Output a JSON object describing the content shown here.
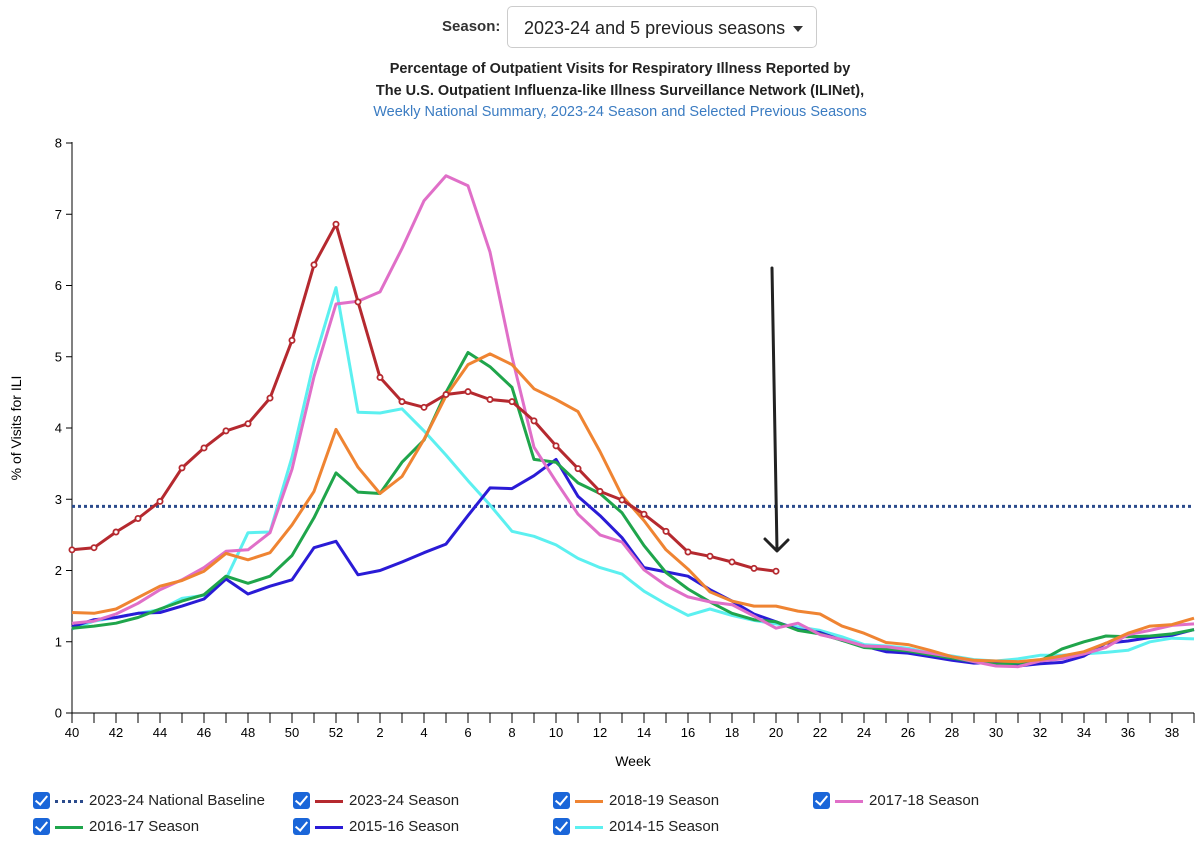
{
  "season_selector": {
    "label": "Season:",
    "value": "2023-24 and 5 previous seasons"
  },
  "titles": {
    "line1": "Percentage of Outpatient Visits for Respiratory Illness Reported by",
    "line2": "The U.S. Outpatient Influenza-like Illness Surveillance Network (ILINet),",
    "line3": "Weekly National Summary, 2023-24 Season and Selected Previous Seasons"
  },
  "legend": [
    {
      "label": "2023-24 National Baseline",
      "color": "#2b4b8c",
      "style": "dotted"
    },
    {
      "label": "2023-24 Season",
      "color": "#b5292f",
      "style": "solid"
    },
    {
      "label": "2018-19 Season",
      "color": "#ef8432",
      "style": "solid"
    },
    {
      "label": "2017-18 Season",
      "color": "#e06fc8",
      "style": "solid"
    },
    {
      "label": "2016-17 Season",
      "color": "#1fa54b",
      "style": "solid"
    },
    {
      "label": "2015-16 Season",
      "color": "#2a1bd6",
      "style": "solid"
    },
    {
      "label": "2014-15 Season",
      "color": "#5cf0f0",
      "style": "solid"
    }
  ],
  "chart_data": {
    "type": "line",
    "ylabel": "% of Visits for ILI",
    "xlabel": "Week",
    "ylim": [
      0,
      8
    ],
    "yticks": [
      0,
      1,
      2,
      3,
      4,
      5,
      6,
      7,
      8
    ],
    "xtick_labels": [
      "40",
      "42",
      "44",
      "46",
      "48",
      "50",
      "52",
      "2",
      "4",
      "6",
      "8",
      "10",
      "12",
      "14",
      "16",
      "18",
      "20",
      "22",
      "24",
      "26",
      "28",
      "30",
      "32",
      "34",
      "36",
      "38"
    ],
    "baseline": {
      "name": "2023-24 National Baseline",
      "value": 2.9
    },
    "annotation": {
      "type": "arrow",
      "description": "downward arrow pointing to week 20 of 2023-24 season"
    },
    "series": [
      {
        "name": "2023-24 Season",
        "color": "#b5292f",
        "markers": true,
        "values": [
          2.29,
          2.32,
          2.54,
          2.73,
          2.97,
          3.44,
          3.72,
          3.96,
          4.06,
          4.42,
          5.23,
          6.29,
          6.86,
          5.77,
          4.71,
          4.37,
          4.29,
          4.47,
          4.51,
          4.4,
          4.37,
          4.1,
          3.75,
          3.43,
          3.11,
          2.99,
          2.79,
          2.55,
          2.26,
          2.2,
          2.12,
          2.03,
          1.99
        ]
      },
      {
        "name": "2018-19 Season",
        "color": "#ef8432",
        "markers": false,
        "values": [
          1.41,
          1.4,
          1.46,
          1.62,
          1.78,
          1.86,
          1.99,
          2.24,
          2.15,
          2.25,
          2.64,
          3.11,
          3.98,
          3.45,
          3.08,
          3.32,
          3.84,
          4.45,
          4.89,
          5.04,
          4.89,
          4.55,
          4.4,
          4.23,
          3.67,
          3.05,
          2.7,
          2.29,
          2.02,
          1.7,
          1.57,
          1.5,
          1.5,
          1.43,
          1.39,
          1.22,
          1.12,
          0.99,
          0.96,
          0.88,
          0.79,
          0.74,
          0.73,
          0.72,
          0.75,
          0.8,
          0.86,
          0.98,
          1.12,
          1.22,
          1.24,
          1.33
        ]
      },
      {
        "name": "2017-18 Season",
        "color": "#e06fc8",
        "markers": false,
        "values": [
          1.26,
          1.29,
          1.39,
          1.54,
          1.73,
          1.87,
          2.04,
          2.27,
          2.29,
          2.53,
          3.42,
          4.72,
          5.74,
          5.78,
          5.91,
          6.52,
          7.19,
          7.54,
          7.4,
          6.47,
          5.0,
          3.73,
          3.25,
          2.79,
          2.5,
          2.4,
          2.01,
          1.79,
          1.63,
          1.56,
          1.52,
          1.36,
          1.19,
          1.26,
          1.1,
          1.03,
          0.94,
          0.93,
          0.89,
          0.84,
          0.79,
          0.72,
          0.66,
          0.65,
          0.73,
          0.76,
          0.83,
          0.92,
          1.1,
          1.16,
          1.23,
          1.25
        ]
      },
      {
        "name": "2016-17 Season",
        "color": "#1fa54b",
        "markers": false,
        "values": [
          1.19,
          1.22,
          1.26,
          1.34,
          1.46,
          1.57,
          1.66,
          1.92,
          1.82,
          1.92,
          2.21,
          2.74,
          3.37,
          3.1,
          3.08,
          3.52,
          3.83,
          4.5,
          5.06,
          4.86,
          4.57,
          3.56,
          3.52,
          3.23,
          3.08,
          2.81,
          2.35,
          1.97,
          1.74,
          1.56,
          1.4,
          1.31,
          1.28,
          1.16,
          1.11,
          1.02,
          0.92,
          0.9,
          0.87,
          0.82,
          0.77,
          0.72,
          0.68,
          0.7,
          0.73,
          0.9,
          1.0,
          1.08,
          1.07,
          1.08,
          1.11,
          1.17
        ]
      },
      {
        "name": "2015-16 Season",
        "color": "#2a1bd6",
        "markers": false,
        "values": [
          1.21,
          1.31,
          1.34,
          1.4,
          1.41,
          1.5,
          1.6,
          1.88,
          1.67,
          1.78,
          1.87,
          2.32,
          2.41,
          1.94,
          2.0,
          2.12,
          2.25,
          2.37,
          2.77,
          3.16,
          3.15,
          3.33,
          3.56,
          3.04,
          2.77,
          2.46,
          2.04,
          1.98,
          1.92,
          1.73,
          1.57,
          1.39,
          1.28,
          1.17,
          1.13,
          1.02,
          0.94,
          0.86,
          0.84,
          0.79,
          0.74,
          0.7,
          0.71,
          0.66,
          0.69,
          0.71,
          0.8,
          0.98,
          1.01,
          1.06,
          1.09,
          1.17
        ]
      },
      {
        "name": "2014-15 Season",
        "color": "#5cf0f0",
        "markers": false,
        "values": [
          1.18,
          1.29,
          1.34,
          1.4,
          1.45,
          1.61,
          1.65,
          1.88,
          2.53,
          2.54,
          3.59,
          4.93,
          5.97,
          4.22,
          4.21,
          4.27,
          3.96,
          3.62,
          3.26,
          2.92,
          2.55,
          2.48,
          2.36,
          2.17,
          2.04,
          1.95,
          1.71,
          1.53,
          1.37,
          1.46,
          1.37,
          1.3,
          1.25,
          1.21,
          1.16,
          1.07,
          0.96,
          0.94,
          0.91,
          0.84,
          0.8,
          0.75,
          0.73,
          0.76,
          0.81,
          0.81,
          0.83,
          0.85,
          0.88,
          1.0,
          1.05,
          1.04
        ]
      }
    ]
  }
}
